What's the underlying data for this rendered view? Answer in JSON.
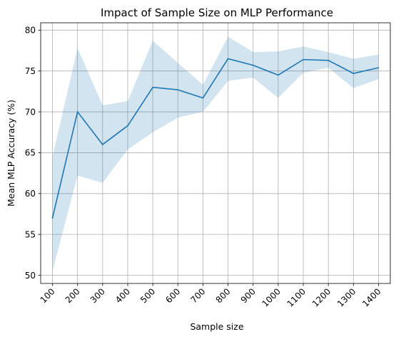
{
  "chart_data": {
    "type": "line",
    "title": "Impact of Sample Size on MLP Performance",
    "xlabel": "Sample size",
    "ylabel": "Mean MLP Accuracy (%)",
    "categories": [
      "100",
      "200",
      "300",
      "400",
      "500",
      "600",
      "700",
      "800",
      "900",
      "1000",
      "1100",
      "1200",
      "1300",
      "1400"
    ],
    "x": [
      100,
      200,
      300,
      400,
      500,
      600,
      700,
      800,
      900,
      1000,
      1100,
      1200,
      1300,
      1400
    ],
    "series": [
      {
        "values": [
          57.0,
          70.0,
          66.0,
          68.3,
          73.0,
          72.7,
          71.7,
          76.5,
          75.7,
          74.5,
          76.4,
          76.3,
          74.7,
          75.4
        ],
        "upper": [
          64.5,
          77.8,
          70.8,
          71.3,
          78.7,
          76.0,
          73.3,
          79.2,
          77.3,
          77.4,
          78.0,
          77.3,
          76.5,
          77.0
        ],
        "lower": [
          50.5,
          62.2,
          61.3,
          65.4,
          67.5,
          69.3,
          70.0,
          73.8,
          74.2,
          71.7,
          74.8,
          75.4,
          72.9,
          74.0
        ],
        "color": "#1f77b4",
        "band_color": "#1f77b4"
      }
    ],
    "yticks": [
      50,
      55,
      60,
      65,
      70,
      75,
      80
    ],
    "ylim": [
      49.0,
      80.9
    ],
    "xlim": [
      53,
      1447
    ],
    "grid": true,
    "legend": false
  }
}
